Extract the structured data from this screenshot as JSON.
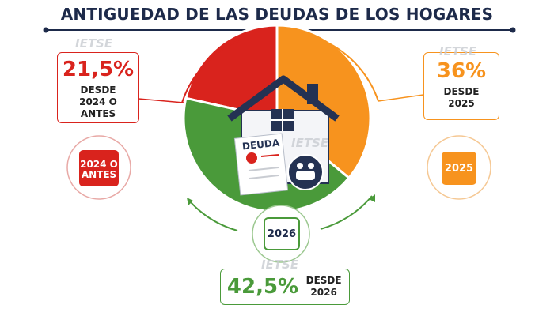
{
  "chart_data": {
    "type": "pie",
    "title": "ANTIGUEDAD DE LAS DEUDAS DE LOS HOGARES",
    "categories": [
      "2024 O ANTES",
      "2025",
      "2026"
    ],
    "captions": [
      "DESDE 2024 O ANTES",
      "DESDE 2025",
      "DESDE 2026"
    ],
    "values": [
      21.5,
      36,
      42.5
    ],
    "value_labels": [
      "21,5%",
      "36%",
      "42,5%"
    ],
    "colors": [
      "#d9231d",
      "#f7931e",
      "#4a9a3a"
    ],
    "document_label": "DEUDA",
    "watermark": "IETSE"
  }
}
